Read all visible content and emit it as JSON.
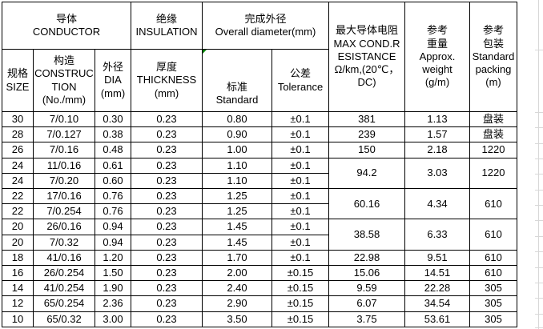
{
  "table": {
    "header": {
      "conductor": [
        "导体",
        "CONDUCTOR"
      ],
      "insulation": [
        "绝缘",
        "INSULATION"
      ],
      "overall_diameter": [
        "完成外径",
        "Overall diameter(mm)"
      ],
      "max_resistance": [
        "最大导体电阻",
        "MAX COND.R",
        "ESISTANCE",
        "Ω/km,(20℃，",
        "DC)"
      ],
      "approx_weight": [
        "参考",
        "重量",
        "Approx.",
        "weight",
        "(g/m)"
      ],
      "standard_packing": [
        "参考",
        "包装",
        "Standard",
        "packing",
        "(m)"
      ],
      "size": [
        "规格",
        "SIZE"
      ],
      "construction": [
        "构造",
        "CONSTRUC",
        "TION",
        "(No./mm)"
      ],
      "dia": [
        "外径",
        "DIA",
        "(mm)"
      ],
      "thickness": [
        "厚度",
        "THICKNESS",
        "(mm)"
      ],
      "standard": [
        "标准",
        "Standard"
      ],
      "tolerance": [
        "公差",
        "Tolerance"
      ]
    },
    "rows": [
      {
        "size": "30",
        "construction": "7/0.10",
        "dia": "0.30",
        "thickness": "0.23",
        "standard": "0.80",
        "tolerance": "±0.1",
        "resistance": "381",
        "weight": "1.13",
        "packing": "盘装",
        "span": 1
      },
      {
        "size": "28",
        "construction": "7/0.127",
        "dia": "0.38",
        "thickness": "0.23",
        "standard": "0.90",
        "tolerance": "±0.1",
        "resistance": "239",
        "weight": "1.57",
        "packing": "盘装",
        "span": 1
      },
      {
        "size": "26",
        "construction": "7/0.16",
        "dia": "0.48",
        "thickness": "0.23",
        "standard": "1.00",
        "tolerance": "±0.1",
        "resistance": "150",
        "weight": "2.18",
        "packing": "1220",
        "span": 1
      },
      {
        "size": "24",
        "construction": "11/0.16",
        "dia": "0.61",
        "thickness": "0.23",
        "standard": "1.10",
        "tolerance": "±0.1",
        "resistance": "94.2",
        "weight": "3.03",
        "packing": "1220",
        "span": 2
      },
      {
        "size": "24",
        "construction": "7/0.20",
        "dia": "0.60",
        "thickness": "0.23",
        "standard": "1.10",
        "tolerance": "±0.1"
      },
      {
        "size": "22",
        "construction": "17/0.16",
        "dia": "0.76",
        "thickness": "0.23",
        "standard": "1.25",
        "tolerance": "±0.1",
        "resistance": "60.16",
        "weight": "4.34",
        "packing": "610",
        "span": 2
      },
      {
        "size": "22",
        "construction": "7/0.254",
        "dia": "0.76",
        "thickness": "0.23",
        "standard": "1.25",
        "tolerance": "±0.1"
      },
      {
        "size": "20",
        "construction": "26/0.16",
        "dia": "0.94",
        "thickness": "0.23",
        "standard": "1.45",
        "tolerance": "±0.1",
        "resistance": "38.58",
        "weight": "6.33",
        "packing": "610",
        "span": 2
      },
      {
        "size": "20",
        "construction": "7/0.32",
        "dia": "0.94",
        "thickness": "0.23",
        "standard": "1.45",
        "tolerance": "±0.1"
      },
      {
        "size": "18",
        "construction": "41/0.16",
        "dia": "1.20",
        "thickness": "0.23",
        "standard": "1.70",
        "tolerance": "±0.1",
        "resistance": "22.98",
        "weight": "9.51",
        "packing": "610",
        "span": 1
      },
      {
        "size": "16",
        "construction": "26/0.254",
        "dia": "1.50",
        "thickness": "0.23",
        "standard": "2.00",
        "tolerance": "±0.15",
        "resistance": "15.06",
        "weight": "14.51",
        "packing": "610",
        "span": 1
      },
      {
        "size": "14",
        "construction": "41/0.254",
        "dia": "1.90",
        "thickness": "0.23",
        "standard": "2.40",
        "tolerance": "±0.15",
        "resistance": "9.59",
        "weight": "22.28",
        "packing": "305",
        "span": 1
      },
      {
        "size": "12",
        "construction": "65/0.254",
        "dia": "2.36",
        "thickness": "0.23",
        "standard": "2.90",
        "tolerance": "±0.15",
        "resistance": "6.07",
        "weight": "34.54",
        "packing": "305",
        "span": 1
      },
      {
        "size": "10",
        "construction": "65/0.32",
        "dia": "3.00",
        "thickness": "0.23",
        "standard": "3.50",
        "tolerance": "±0.15",
        "resistance": "3.75",
        "weight": "53.61",
        "packing": "305",
        "span": 1
      }
    ]
  },
  "colors": {
    "border": "#000000",
    "text": "#000000",
    "background": "#ffffff",
    "excel_gridline": "#d8d8d8",
    "error_indicator": "#008000"
  }
}
